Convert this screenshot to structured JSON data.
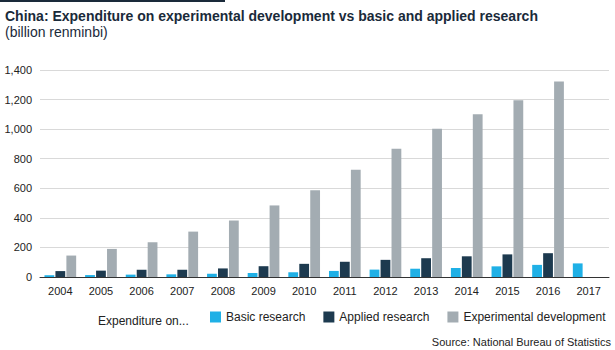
{
  "chart_data": {
    "type": "bar",
    "title": "China: Expenditure on experimental development vs basic and applied research",
    "subtitle": "(billion renminbi)",
    "legend_title": "Expenditure on...",
    "source": "Source: National Bureau of Statistics",
    "categories": [
      "2004",
      "2005",
      "2006",
      "2007",
      "2008",
      "2009",
      "2010",
      "2011",
      "2012",
      "2013",
      "2014",
      "2015",
      "2016",
      "2017"
    ],
    "series": [
      {
        "name": "Basic research",
        "color": "#1fb0e6",
        "values": [
          12,
          13,
          16,
          18,
          22,
          27,
          32,
          41,
          50,
          56,
          61,
          72,
          82,
          92
        ]
      },
      {
        "name": "Applied research",
        "color": "#1d3a4f",
        "values": [
          40,
          43,
          49,
          49,
          58,
          73,
          89,
          103,
          116,
          127,
          140,
          153,
          161,
          null
        ]
      },
      {
        "name": "Experimental development",
        "color": "#a3acb2",
        "values": [
          145,
          190,
          235,
          307,
          382,
          484,
          587,
          725,
          868,
          1003,
          1100,
          1196,
          1323,
          null
        ]
      }
    ],
    "ylim": [
      0,
      1400
    ],
    "yticks": [
      0,
      200,
      400,
      600,
      800,
      {
        "value": 1000,
        "label": "1,000"
      },
      {
        "value": 1200,
        "label": "1,200"
      },
      {
        "value": 1400,
        "label": "1,400"
      }
    ],
    "grid": true,
    "legend": "bottom"
  }
}
